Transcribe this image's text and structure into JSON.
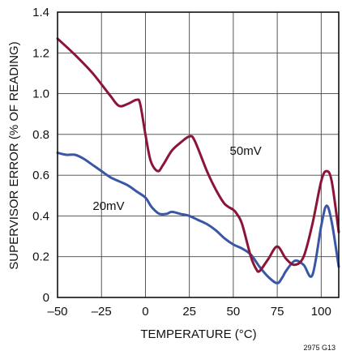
{
  "chart_data": {
    "type": "line",
    "xlabel": "TEMPERATURE (°C)",
    "ylabel": "SUPERVISOR ERROR (% OF READING)",
    "xlim": [
      -50,
      110
    ],
    "ylim": [
      0,
      1.4
    ],
    "xticks": [
      -50,
      -25,
      0,
      25,
      50,
      75,
      100
    ],
    "xtick_labels": [
      "–50",
      "–25",
      "0",
      "25",
      "50",
      "75",
      "100"
    ],
    "yticks": [
      0,
      0.2,
      0.4,
      0.6,
      0.8,
      1.0,
      1.2,
      1.4
    ],
    "ytick_labels": [
      "0",
      "0.2",
      "0.4",
      "0.6",
      "0.8",
      "1.0",
      "1.2",
      "1.4"
    ],
    "grid": true,
    "figure_id": "2975 G13",
    "series": [
      {
        "name": "50mV",
        "color": "#8b1538",
        "x": [
          -50,
          -40,
          -30,
          -20,
          -15,
          -10,
          -5,
          -3,
          0,
          3,
          7,
          10,
          15,
          20,
          25,
          28,
          35,
          40,
          45,
          50,
          52,
          55,
          60,
          63,
          65,
          70,
          75,
          80,
          85,
          90,
          95,
          100,
          103,
          106,
          110
        ],
        "y": [
          1.27,
          1.19,
          1.1,
          0.99,
          0.94,
          0.95,
          0.97,
          0.95,
          0.8,
          0.67,
          0.62,
          0.65,
          0.72,
          0.76,
          0.79,
          0.77,
          0.62,
          0.53,
          0.46,
          0.43,
          0.41,
          0.36,
          0.2,
          0.14,
          0.13,
          0.19,
          0.25,
          0.19,
          0.16,
          0.2,
          0.36,
          0.57,
          0.62,
          0.57,
          0.32
        ]
      },
      {
        "name": "20mV",
        "color": "#3a57a6",
        "x": [
          -50,
          -45,
          -40,
          -35,
          -30,
          -25,
          -20,
          -15,
          -10,
          -5,
          0,
          3,
          5,
          8,
          12,
          15,
          20,
          25,
          30,
          35,
          40,
          45,
          50,
          55,
          60,
          65,
          70,
          75,
          78,
          80,
          85,
          90,
          95,
          100,
          103,
          106,
          110
        ],
        "y": [
          0.71,
          0.7,
          0.7,
          0.68,
          0.65,
          0.62,
          0.59,
          0.57,
          0.55,
          0.52,
          0.49,
          0.45,
          0.43,
          0.41,
          0.41,
          0.42,
          0.41,
          0.4,
          0.38,
          0.36,
          0.33,
          0.29,
          0.26,
          0.24,
          0.21,
          0.15,
          0.1,
          0.07,
          0.1,
          0.13,
          0.18,
          0.16,
          0.11,
          0.35,
          0.45,
          0.37,
          0.15
        ]
      }
    ],
    "annotations": [
      {
        "text": "50mV",
        "x": 48,
        "y": 0.7
      },
      {
        "text": "20mV",
        "x": -30,
        "y": 0.43
      }
    ]
  }
}
